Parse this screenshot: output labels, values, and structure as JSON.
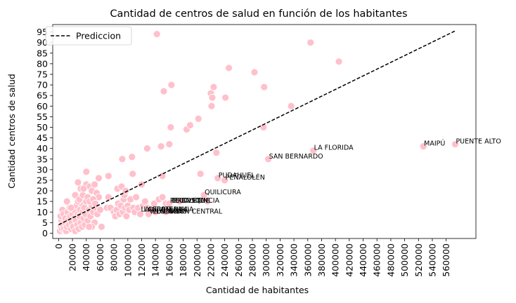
{
  "chart_data": {
    "type": "scatter",
    "title": "Cantidad de centros de salud en función de los habitantes",
    "xlabel": "Cantidad de habitantes",
    "ylabel": "Cantidad centros de salud",
    "xlim": [
      -8500,
      603000
    ],
    "ylim": [
      -2.5,
      98.5
    ],
    "x_ticks": [
      0,
      20000,
      40000,
      60000,
      80000,
      100000,
      120000,
      140000,
      160000,
      180000,
      200000,
      220000,
      240000,
      260000,
      280000,
      300000,
      320000,
      340000,
      360000,
      380000,
      400000,
      420000,
      440000,
      460000,
      480000,
      500000,
      520000,
      540000,
      560000
    ],
    "y_ticks": [
      0,
      5,
      10,
      15,
      20,
      25,
      30,
      35,
      40,
      45,
      50,
      55,
      60,
      65,
      70,
      75,
      80,
      85,
      90,
      95
    ],
    "grid": false,
    "legend": {
      "placement": "top-left",
      "entries": [
        {
          "label": "Prediccion",
          "style": "dashed",
          "color": "#000000"
        }
      ]
    },
    "colors": {
      "points": "#ffc0cb",
      "point_edge": "#ffffff",
      "line": "#000000"
    },
    "prediction_line": {
      "name": "Prediccion",
      "x": [
        0,
        573000
      ],
      "y": [
        4,
        95.5
      ]
    },
    "points": [
      {
        "x": 2000,
        "y": 1
      },
      {
        "x": 3500,
        "y": 3
      },
      {
        "x": 5000,
        "y": 2
      },
      {
        "x": 4000,
        "y": 6
      },
      {
        "x": 6000,
        "y": 4
      },
      {
        "x": 3000,
        "y": 8
      },
      {
        "x": 5500,
        "y": 11
      },
      {
        "x": 7000,
        "y": 9
      },
      {
        "x": 8000,
        "y": 2
      },
      {
        "x": 9000,
        "y": 5
      },
      {
        "x": 10000,
        "y": 7
      },
      {
        "x": 11000,
        "y": 1
      },
      {
        "x": 12000,
        "y": 3
      },
      {
        "x": 13000,
        "y": 10
      },
      {
        "x": 14000,
        "y": 6
      },
      {
        "x": 15000,
        "y": 4
      },
      {
        "x": 16000,
        "y": 12
      },
      {
        "x": 17000,
        "y": 8
      },
      {
        "x": 18000,
        "y": 2
      },
      {
        "x": 19000,
        "y": 5
      },
      {
        "x": 20000,
        "y": 9
      },
      {
        "x": 21000,
        "y": 3
      },
      {
        "x": 22000,
        "y": 11
      },
      {
        "x": 23000,
        "y": 7
      },
      {
        "x": 24000,
        "y": 1
      },
      {
        "x": 25000,
        "y": 6
      },
      {
        "x": 26000,
        "y": 13
      },
      {
        "x": 27000,
        "y": 4
      },
      {
        "x": 28000,
        "y": 9
      },
      {
        "x": 29000,
        "y": 2
      },
      {
        "x": 30000,
        "y": 8
      },
      {
        "x": 31000,
        "y": 11
      },
      {
        "x": 32000,
        "y": 5
      },
      {
        "x": 33000,
        "y": 14
      },
      {
        "x": 34000,
        "y": 3
      },
      {
        "x": 35000,
        "y": 10
      },
      {
        "x": 36000,
        "y": 7
      },
      {
        "x": 37000,
        "y": 12
      },
      {
        "x": 38000,
        "y": 4
      },
      {
        "x": 39000,
        "y": 9
      },
      {
        "x": 40000,
        "y": 15
      },
      {
        "x": 42000,
        "y": 6
      },
      {
        "x": 44000,
        "y": 11
      },
      {
        "x": 46000,
        "y": 8
      },
      {
        "x": 48000,
        "y": 13
      },
      {
        "x": 50000,
        "y": 10
      },
      {
        "x": 52000,
        "y": 5
      },
      {
        "x": 54000,
        "y": 12
      },
      {
        "x": 56000,
        "y": 9
      },
      {
        "x": 28000,
        "y": 15
      },
      {
        "x": 24000,
        "y": 18
      },
      {
        "x": 30000,
        "y": 16
      },
      {
        "x": 35000,
        "y": 18
      },
      {
        "x": 42000,
        "y": 17
      },
      {
        "x": 38000,
        "y": 22
      },
      {
        "x": 40000,
        "y": 23
      },
      {
        "x": 45000,
        "y": 22
      },
      {
        "x": 32000,
        "y": 21
      },
      {
        "x": 36000,
        "y": 21
      },
      {
        "x": 48000,
        "y": 20
      },
      {
        "x": 52000,
        "y": 23
      },
      {
        "x": 55000,
        "y": 19
      },
      {
        "x": 58000,
        "y": 17
      },
      {
        "x": 58000,
        "y": 26
      },
      {
        "x": 28000,
        "y": 24
      },
      {
        "x": 40000,
        "y": 29
      },
      {
        "x": 45000,
        "y": 15
      },
      {
        "x": 50000,
        "y": 16
      },
      {
        "x": 53000,
        "y": 14
      },
      {
        "x": 18000,
        "y": 12
      },
      {
        "x": 12000,
        "y": 15
      },
      {
        "x": 60000,
        "y": 11
      },
      {
        "x": 62000,
        "y": 3
      },
      {
        "x": 48000,
        "y": 3
      },
      {
        "x": 44000,
        "y": 3
      },
      {
        "x": 70000,
        "y": 12
      },
      {
        "x": 72000,
        "y": 17
      },
      {
        "x": 75000,
        "y": 12
      },
      {
        "x": 72000,
        "y": 27
      },
      {
        "x": 80000,
        "y": 10
      },
      {
        "x": 82000,
        "y": 8
      },
      {
        "x": 84000,
        "y": 11
      },
      {
        "x": 85000,
        "y": 21
      },
      {
        "x": 86000,
        "y": 14
      },
      {
        "x": 88000,
        "y": 9
      },
      {
        "x": 90000,
        "y": 13
      },
      {
        "x": 91000,
        "y": 22
      },
      {
        "x": 92000,
        "y": 35
      },
      {
        "x": 93000,
        "y": 10
      },
      {
        "x": 94000,
        "y": 16
      },
      {
        "x": 95000,
        "y": 18
      },
      {
        "x": 96000,
        "y": 12
      },
      {
        "x": 97000,
        "y": 20
      },
      {
        "x": 98000,
        "y": 8
      },
      {
        "x": 100000,
        "y": 13
      },
      {
        "x": 102000,
        "y": 11
      },
      {
        "x": 104000,
        "y": 16
      },
      {
        "x": 106000,
        "y": 36
      },
      {
        "x": 107000,
        "y": 28
      },
      {
        "x": 108000,
        "y": 12
      },
      {
        "x": 110000,
        "y": 10
      },
      {
        "x": 112000,
        "y": 17
      },
      {
        "x": 115000,
        "y": 12
      },
      {
        "x": 118000,
        "y": 9
      },
      {
        "x": 120000,
        "y": 23
      },
      {
        "x": 122000,
        "y": 13
      },
      {
        "x": 125000,
        "y": 15
      },
      {
        "x": 128000,
        "y": 12
      },
      {
        "x": 128000,
        "y": 40
      },
      {
        "x": 132000,
        "y": 11
      },
      {
        "x": 135000,
        "y": 11
      },
      {
        "x": 138000,
        "y": 14
      },
      {
        "x": 140000,
        "y": 10
      },
      {
        "x": 142000,
        "y": 94
      },
      {
        "x": 145000,
        "y": 16
      },
      {
        "x": 148000,
        "y": 41
      },
      {
        "x": 150000,
        "y": 17
      },
      {
        "x": 150000,
        "y": 27
      },
      {
        "x": 152000,
        "y": 67
      },
      {
        "x": 155000,
        "y": 14
      },
      {
        "x": 160000,
        "y": 42
      },
      {
        "x": 162000,
        "y": 50
      },
      {
        "x": 163000,
        "y": 70
      },
      {
        "x": 175000,
        "y": 15
      },
      {
        "x": 185000,
        "y": 49
      },
      {
        "x": 190000,
        "y": 51
      },
      {
        "x": 202000,
        "y": 54
      },
      {
        "x": 205000,
        "y": 28
      },
      {
        "x": 215000,
        "y": 15
      },
      {
        "x": 220000,
        "y": 66
      },
      {
        "x": 221000,
        "y": 60
      },
      {
        "x": 222000,
        "y": 64
      },
      {
        "x": 224000,
        "y": 69
      },
      {
        "x": 228000,
        "y": 38
      },
      {
        "x": 240000,
        "y": 25
      },
      {
        "x": 241000,
        "y": 64
      },
      {
        "x": 246000,
        "y": 78
      },
      {
        "x": 283000,
        "y": 76
      },
      {
        "x": 296000,
        "y": 50
      },
      {
        "x": 297000,
        "y": 69
      },
      {
        "x": 303000,
        "y": 35
      },
      {
        "x": 336000,
        "y": 60
      },
      {
        "x": 364000,
        "y": 90
      },
      {
        "x": 368000,
        "y": 39
      },
      {
        "x": 405000,
        "y": 81
      },
      {
        "x": 527000,
        "y": 41
      },
      {
        "x": 573000,
        "y": 42
      },
      {
        "x": 230000,
        "y": 26
      },
      {
        "x": 210000,
        "y": 18
      },
      {
        "x": 160000,
        "y": 14
      },
      {
        "x": 155000,
        "y": 10
      },
      {
        "x": 130000,
        "y": 9
      }
    ],
    "annotations": [
      {
        "text": "PUENTE ALTO",
        "x": 573000,
        "y": 42
      },
      {
        "text": "MAIPÚ",
        "x": 527000,
        "y": 41
      },
      {
        "text": "LA FLORIDA",
        "x": 368000,
        "y": 39
      },
      {
        "text": "SAN BERNARDO",
        "x": 303000,
        "y": 35
      },
      {
        "text": "PUDAHUEL",
        "x": 230000,
        "y": 26
      },
      {
        "text": "PEÑALOLÉN",
        "x": 240000,
        "y": 25
      },
      {
        "text": "QUILICURA",
        "x": 210000,
        "y": 18
      },
      {
        "text": "RECOLETA",
        "x": 160000,
        "y": 14
      },
      {
        "text": "EL BOSQUE",
        "x": 162000,
        "y": 14
      },
      {
        "text": "PROVIDENCIA",
        "x": 165000,
        "y": 14
      },
      {
        "text": "LA GRANJA",
        "x": 118000,
        "y": 10
      },
      {
        "text": "LA CISTERNA",
        "x": 122000,
        "y": 10
      },
      {
        "text": "CERRO NAVIA",
        "x": 128000,
        "y": 10
      },
      {
        "text": "VITACURA",
        "x": 130000,
        "y": 9
      },
      {
        "text": "LO PRADO",
        "x": 135000,
        "y": 9
      },
      {
        "text": "ESTACIÓN CENTRAL",
        "x": 140000,
        "y": 9
      }
    ]
  }
}
